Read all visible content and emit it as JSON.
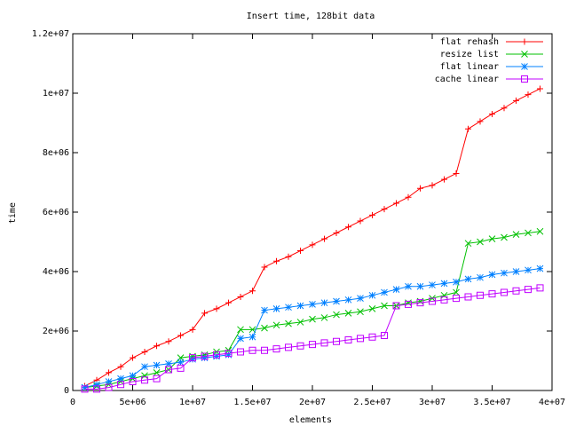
{
  "chart_data": {
    "type": "line",
    "title": "Insert time, 128bit data",
    "xlabel": "elements",
    "ylabel": "time",
    "x": [
      1000000,
      2000000,
      3000000,
      4000000,
      5000000,
      6000000,
      7000000,
      8000000,
      9000000,
      10000000,
      11000000,
      12000000,
      13000000,
      14000000,
      15000000,
      16000000,
      17000000,
      18000000,
      19000000,
      20000000,
      21000000,
      22000000,
      23000000,
      24000000,
      25000000,
      26000000,
      27000000,
      28000000,
      29000000,
      30000000,
      31000000,
      32000000,
      33000000,
      34000000,
      35000000,
      36000000,
      37000000,
      38000000,
      39000000
    ],
    "xlim": [
      0,
      40000000
    ],
    "xticks": [
      0,
      {
        "value": 5000000,
        "label": "5e+06"
      },
      {
        "value": 10000000,
        "label": "1e+07"
      },
      {
        "value": 15000000,
        "label": "1.5e+07"
      },
      {
        "value": 20000000,
        "label": "2e+07"
      },
      {
        "value": 25000000,
        "label": "2.5e+07"
      },
      {
        "value": 30000000,
        "label": "3e+07"
      },
      {
        "value": 35000000,
        "label": "3.5e+07"
      },
      {
        "value": 40000000,
        "label": "4e+07"
      }
    ],
    "ylim": [
      0,
      12000000
    ],
    "yticks": [
      0,
      {
        "value": 2000000,
        "label": "2e+06"
      },
      {
        "value": 4000000,
        "label": "4e+06"
      },
      {
        "value": 6000000,
        "label": "6e+06"
      },
      {
        "value": 8000000,
        "label": "8e+06"
      },
      {
        "value": 10000000,
        "label": "1e+07"
      },
      {
        "value": 12000000,
        "label": "1.2e+07"
      }
    ],
    "legend": "top-right",
    "series": [
      {
        "name": "flat rehash",
        "color": "#ff0000",
        "marker": "plus",
        "values": [
          150000,
          350000,
          600000,
          800000,
          1100000,
          1300000,
          1500000,
          1650000,
          1850000,
          2050000,
          2600000,
          2750000,
          2950000,
          3150000,
          3350000,
          4150000,
          4350000,
          4500000,
          4700000,
          4900000,
          5100000,
          5300000,
          5500000,
          5700000,
          5900000,
          6100000,
          6300000,
          6500000,
          6800000,
          6900000,
          7100000,
          7300000,
          8800000,
          9050000,
          9300000,
          9500000,
          9750000,
          9950000,
          10150000
        ]
      },
      {
        "name": "resize list",
        "color": "#00c000",
        "marker": "cross",
        "values": [
          100000,
          150000,
          200000,
          300000,
          400000,
          500000,
          600000,
          700000,
          1100000,
          1150000,
          1200000,
          1300000,
          1350000,
          2050000,
          2050000,
          2100000,
          2200000,
          2250000,
          2300000,
          2400000,
          2450000,
          2550000,
          2600000,
          2650000,
          2750000,
          2850000,
          2850000,
          2950000,
          3000000,
          3100000,
          3200000,
          3300000,
          4950000,
          5000000,
          5100000,
          5150000,
          5250000,
          5300000,
          5350000
        ]
      },
      {
        "name": "flat linear",
        "color": "#0080ff",
        "marker": "star",
        "values": [
          100000,
          200000,
          300000,
          400000,
          500000,
          800000,
          850000,
          900000,
          950000,
          1050000,
          1100000,
          1150000,
          1200000,
          1750000,
          1800000,
          2700000,
          2750000,
          2800000,
          2850000,
          2900000,
          2950000,
          3000000,
          3050000,
          3100000,
          3200000,
          3300000,
          3400000,
          3500000,
          3500000,
          3550000,
          3600000,
          3650000,
          3750000,
          3800000,
          3900000,
          3950000,
          4000000,
          4050000,
          4100000
        ]
      },
      {
        "name": "cache linear",
        "color": "#c000ff",
        "marker": "square",
        "values": [
          50000,
          50000,
          100000,
          200000,
          300000,
          350000,
          400000,
          700000,
          750000,
          1100000,
          1150000,
          1200000,
          1250000,
          1300000,
          1350000,
          1350000,
          1400000,
          1450000,
          1500000,
          1550000,
          1600000,
          1650000,
          1700000,
          1750000,
          1800000,
          1850000,
          2850000,
          2900000,
          2950000,
          3000000,
          3050000,
          3100000,
          3150000,
          3200000,
          3250000,
          3300000,
          3350000,
          3400000,
          3450000
        ]
      }
    ]
  }
}
